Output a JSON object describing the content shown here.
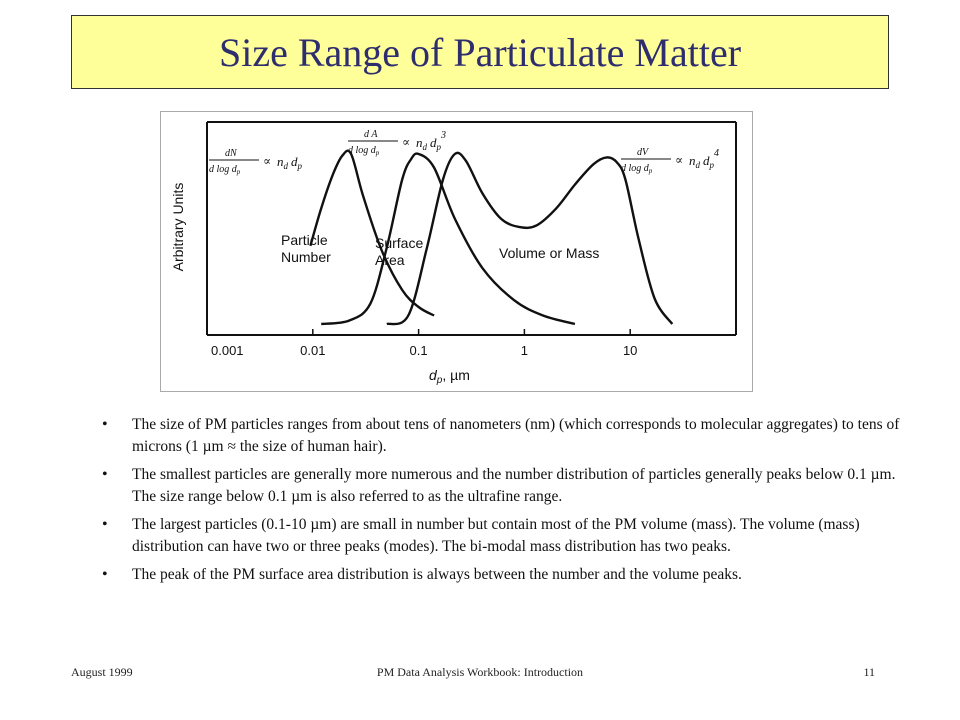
{
  "slide": {
    "title": "Size Range of Particulate Matter",
    "bullets": [
      "The size of PM particles ranges from about tens of nanometers (nm) (which corresponds to molecular aggregates) to tens of microns (1 µm  ≈ the size of human hair).",
      "The smallest particles are generally more numerous and the number distribution of particles generally peaks below 0.1 µm. The size range below 0.1 µm is also referred to as the ultrafine range.",
      "The largest particles (0.1-10 µm) are small in number but contain most of the PM volume (mass). The volume (mass) distribution can have two or three peaks (modes). The bi-modal mass distribution has two peaks.",
      "The peak of the PM surface area distribution is always between the number and the volume peaks."
    ],
    "footer": {
      "left": "August 1999",
      "center": "PM Data Analysis Workbook: Introduction",
      "right": "11"
    }
  },
  "chart_data": {
    "type": "line",
    "x_scale": "log",
    "ylabel": "Arbitrary Units",
    "xlabel_symbol": "d",
    "xlabel_subscript": "p",
    "xlabel_unit": ", µm",
    "xlim": [
      0.001,
      100
    ],
    "x_ticks": [
      "0.001",
      "0.01",
      "0.1",
      "1",
      "10"
    ],
    "series": [
      {
        "name": "Particle Number",
        "label_lines": [
          "Particle",
          "Number"
        ],
        "x": [
          0.0095,
          0.012,
          0.0155,
          0.019,
          0.023,
          0.03,
          0.045,
          0.07,
          0.1,
          0.14
        ],
        "y": [
          0.46,
          0.68,
          0.88,
          0.99,
          1.0,
          0.75,
          0.43,
          0.2,
          0.1,
          0.05
        ]
      },
      {
        "name": "Surface Area",
        "label_lines": [
          "Surface",
          "Area"
        ],
        "x": [
          0.012,
          0.022,
          0.035,
          0.05,
          0.07,
          0.085,
          0.1,
          0.14,
          0.22,
          0.4,
          0.8,
          1.5,
          3.0
        ],
        "y": [
          0.0,
          0.02,
          0.12,
          0.45,
          0.85,
          0.97,
          1.0,
          0.92,
          0.62,
          0.33,
          0.14,
          0.05,
          0.0
        ]
      },
      {
        "name": "Volume or Mass",
        "label_lines": [
          "Volume or Mass"
        ],
        "x": [
          0.05,
          0.08,
          0.12,
          0.17,
          0.22,
          0.28,
          0.4,
          0.6,
          0.9,
          1.3,
          2.0,
          3.0,
          4.5,
          6.0,
          7.5,
          9.0,
          12.0,
          17.0,
          25.0
        ],
        "y": [
          0.0,
          0.05,
          0.45,
          0.85,
          1.0,
          0.96,
          0.77,
          0.62,
          0.57,
          0.58,
          0.68,
          0.82,
          0.94,
          0.98,
          0.95,
          0.85,
          0.5,
          0.15,
          0.0
        ]
      }
    ],
    "formulas": [
      {
        "num_d": "dN",
        "den_pre": "d log d",
        "den_sub": "p",
        "rhs_n": "n",
        "rhs_nsub": "d",
        "rhs_d": "d",
        "rhs_dsub": "p",
        "pow": ""
      },
      {
        "num_d": "d A",
        "den_pre": "d log d",
        "den_sub": "p",
        "rhs_n": "n",
        "rhs_nsub": "d",
        "rhs_d": "d",
        "rhs_dsub": "p",
        "pow": "3"
      },
      {
        "num_d": "dV",
        "den_pre": "d log d",
        "den_sub": "p",
        "rhs_n": "n",
        "rhs_nsub": "d",
        "rhs_d": "d",
        "rhs_dsub": "p",
        "pow": "4"
      }
    ],
    "proportional_symbol": "∝",
    "grid": false,
    "legend": "none"
  }
}
